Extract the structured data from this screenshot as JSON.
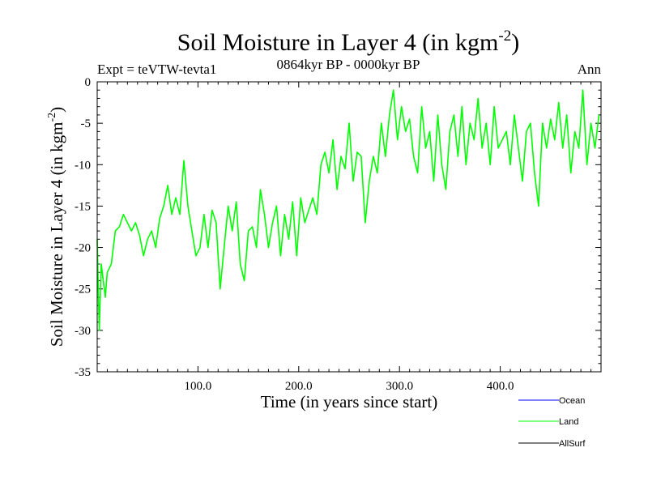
{
  "chart_data": {
    "type": "line",
    "title": "Soil Moisture in Layer 4 (in kgm",
    "title_sup": "-2",
    "title_end": ")",
    "subtitle_left": "Expt = teVTW-tevta1",
    "subtitle_center": "0864kyr BP - 0000kyr BP",
    "subtitle_right": "Ann",
    "xlabel": "Time (in years since start)",
    "ylabel": "Soil Moisture in Layer 4 (in kgm",
    "ylabel_sup": "-2",
    "ylabel_end": ")",
    "xlim": [
      0,
      500
    ],
    "ylim": [
      -35,
      0
    ],
    "xticks": [
      100,
      200,
      300,
      400
    ],
    "xtick_labels": [
      "100.0",
      "200.0",
      "300.0",
      "400.0"
    ],
    "yticks": [
      0,
      -5,
      -10,
      -15,
      -20,
      -25,
      -30,
      -35
    ],
    "ytick_labels": [
      "0",
      "-5",
      "-10",
      "-15",
      "-20",
      "-25",
      "-30",
      "-35"
    ],
    "legend": [
      {
        "name": "Ocean",
        "color": "#0000ff"
      },
      {
        "name": "Land",
        "color": "#00ff00"
      },
      {
        "name": "AllSurf",
        "color": "#000000"
      }
    ],
    "series": [
      {
        "name": "Land",
        "color": "#00ff00",
        "x": [
          0,
          2,
          4,
          6,
          8,
          10,
          14,
          18,
          22,
          26,
          30,
          34,
          38,
          42,
          46,
          50,
          54,
          58,
          62,
          66,
          70,
          74,
          78,
          82,
          86,
          90,
          94,
          98,
          102,
          106,
          110,
          114,
          118,
          122,
          126,
          130,
          134,
          138,
          142,
          146,
          150,
          154,
          158,
          162,
          166,
          170,
          174,
          178,
          182,
          186,
          190,
          194,
          198,
          202,
          206,
          210,
          214,
          218,
          222,
          226,
          230,
          234,
          238,
          242,
          246,
          250,
          254,
          258,
          262,
          266,
          270,
          274,
          278,
          282,
          286,
          290,
          294,
          298,
          302,
          306,
          310,
          314,
          318,
          322,
          326,
          330,
          334,
          338,
          342,
          346,
          350,
          354,
          358,
          362,
          366,
          370,
          374,
          378,
          382,
          386,
          390,
          394,
          398,
          402,
          406,
          410,
          414,
          418,
          422,
          426,
          430,
          434,
          438,
          442,
          446,
          450,
          454,
          458,
          462,
          466,
          470,
          474,
          478,
          482,
          486,
          490,
          494,
          498
        ],
        "y": [
          -19,
          -30,
          -22,
          -24,
          -26,
          -23,
          -22,
          -18,
          -17.5,
          -16,
          -17,
          -18,
          -17,
          -18.5,
          -21,
          -19,
          -18,
          -20,
          -16.5,
          -15,
          -12.5,
          -16,
          -14,
          -16,
          -9.5,
          -15,
          -18,
          -21,
          -20,
          -16,
          -20,
          -15.5,
          -17,
          -25,
          -20,
          -15,
          -18,
          -14.5,
          -22,
          -24,
          -18,
          -17.5,
          -20,
          -13,
          -16,
          -20,
          -17,
          -15,
          -21,
          -16,
          -19,
          -14.5,
          -21,
          -14,
          -17,
          -15.5,
          -14,
          -16,
          -10,
          -8.5,
          -11,
          -7,
          -13,
          -9,
          -10.5,
          -5,
          -12,
          -8.5,
          -9,
          -17,
          -12,
          -9,
          -11,
          -5,
          -9,
          -4,
          -1,
          -7,
          -3,
          -6,
          -4.5,
          -9,
          -11,
          -3,
          -8,
          -6,
          -12,
          -4,
          -10,
          -13,
          -6,
          -4,
          -9,
          -3,
          -10,
          -5,
          -7,
          -2,
          -8,
          -5,
          -10,
          -3,
          -8,
          -7,
          -6,
          -10,
          -4,
          -8,
          -12,
          -6,
          -5,
          -11,
          -15,
          -5,
          -8,
          -4.5,
          -7,
          -2.5,
          -8,
          -4,
          -11,
          -6,
          -8,
          -1,
          -10,
          -5,
          -8,
          -4
        ]
      }
    ]
  }
}
